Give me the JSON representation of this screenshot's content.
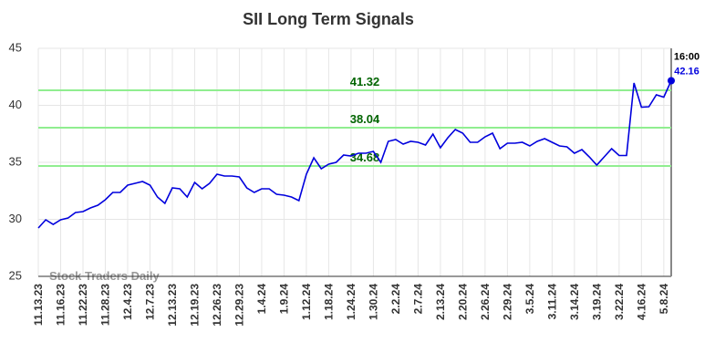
{
  "chart_data": {
    "type": "line",
    "title": "SII Long Term Signals",
    "watermark": "Stock Traders Daily",
    "time_label": "16:00",
    "color": "#0000dd",
    "grid": true,
    "ylim": [
      25,
      45
    ],
    "yticks": [
      25,
      30,
      35,
      40,
      45
    ],
    "levels": [
      41.32,
      38.04,
      34.68
    ],
    "level_color": "#90ee90",
    "level_text_color": "#006400",
    "categories": [
      "11.13.23",
      null,
      null,
      "11.16.23",
      null,
      null,
      "11.22.23",
      null,
      null,
      "11.28.23",
      null,
      null,
      "12.4.23",
      null,
      null,
      "12.7.23",
      null,
      null,
      "12.13.23",
      null,
      null,
      "12.19.23",
      null,
      null,
      "12.26.23",
      null,
      null,
      "12.29.23",
      null,
      null,
      "1.4.24",
      null,
      null,
      "1.9.24",
      null,
      null,
      "1.12.24",
      null,
      null,
      "1.18.24",
      null,
      null,
      "1.24.24",
      null,
      null,
      "1.30.24",
      null,
      null,
      "2.2.24",
      null,
      null,
      "2.7.24",
      null,
      null,
      "2.13.24",
      null,
      null,
      "2.20.24",
      null,
      null,
      "2.26.24",
      null,
      null,
      "2.29.24",
      null,
      null,
      "3.5.24",
      null,
      null,
      "3.11.24",
      null,
      null,
      "3.14.24",
      null,
      null,
      "3.19.24",
      null,
      null,
      "3.22.24",
      null,
      null,
      "4.16.24",
      null,
      null,
      "5.8.24",
      null
    ],
    "values": [
      29.24,
      29.96,
      29.56,
      29.96,
      30.12,
      30.6,
      30.68,
      31.0,
      31.24,
      31.72,
      32.36,
      32.36,
      33.0,
      33.16,
      33.32,
      33.0,
      31.96,
      31.4,
      32.76,
      32.68,
      31.96,
      33.24,
      32.68,
      33.16,
      33.96,
      33.8,
      33.8,
      33.72,
      32.76,
      32.36,
      32.68,
      32.68,
      32.2,
      32.12,
      31.96,
      31.64,
      33.96,
      35.4,
      34.44,
      34.84,
      35.0,
      35.64,
      35.56,
      35.8,
      35.8,
      35.96,
      35.0,
      36.84,
      37.0,
      36.6,
      36.84,
      36.76,
      36.52,
      37.48,
      36.28,
      37.16,
      37.88,
      37.56,
      36.76,
      36.76,
      37.24,
      37.56,
      36.2,
      36.68,
      36.68,
      36.76,
      36.44,
      36.84,
      37.08,
      36.76,
      36.44,
      36.36,
      35.8,
      36.12,
      35.48,
      34.76,
      35.48,
      36.2,
      35.6,
      35.6,
      41.96,
      39.84,
      39.88,
      40.92,
      40.72,
      42.16
    ]
  }
}
